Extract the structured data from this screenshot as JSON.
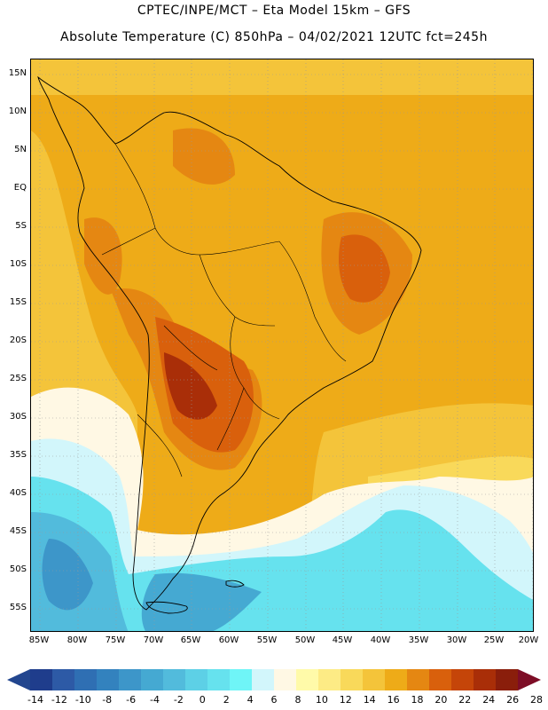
{
  "header": {
    "line1": "CPTEC/INPE/MCT –  Eta Model 15km – GFS",
    "line2": "Absolute Temperature (C) 850hPa – 04/02/2021 12UTC fct=245h"
  },
  "map": {
    "lat_labels": [
      "15N",
      "10N",
      "5N",
      "EQ",
      "5S",
      "10S",
      "15S",
      "20S",
      "25S",
      "30S",
      "35S",
      "40S",
      "45S",
      "50S",
      "55S"
    ],
    "lon_labels": [
      "85W",
      "80W",
      "75W",
      "70W",
      "65W",
      "60W",
      "55W",
      "50W",
      "45W",
      "40W",
      "35W",
      "30W",
      "25W",
      "20W"
    ]
  },
  "colorbar": {
    "labels": [
      "-14",
      "-12",
      "-10",
      "-8",
      "-6",
      "-4",
      "-2",
      "0",
      "2",
      "4",
      "6",
      "8",
      "10",
      "12",
      "14",
      "16",
      "18",
      "20",
      "22",
      "24",
      "26",
      "28"
    ],
    "colors": [
      "#1f3d8c",
      "#2d5aa6",
      "#2f6fb3",
      "#3382be",
      "#3d96c9",
      "#45a9d2",
      "#52bbdc",
      "#5dd0e6",
      "#66e2ee",
      "#6ff5f7",
      "#d2f6fb",
      "#fff8e4",
      "#fffaa9",
      "#fdeb85",
      "#f9d95a",
      "#f4c43a",
      "#eeab18",
      "#e58712",
      "#d9600c",
      "#c54509",
      "#a92e08",
      "#8a1e0b"
    ],
    "under_color": "#22468f",
    "over_color": "#7d0d26"
  }
}
